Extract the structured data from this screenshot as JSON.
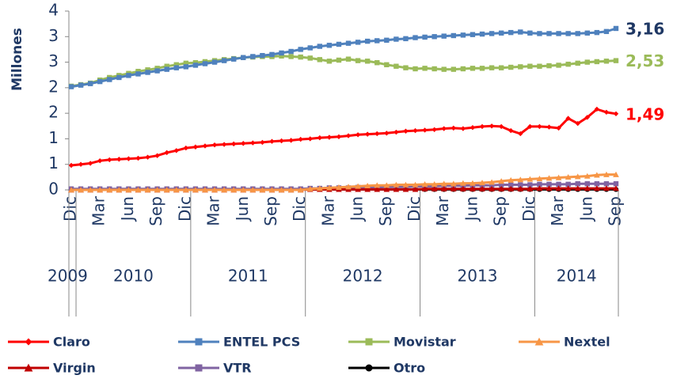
{
  "chart_data": {
    "type": "line",
    "y_label": "Millones",
    "categories": [
      "Dic",
      null,
      null,
      "Mar",
      null,
      null,
      "Jun",
      null,
      null,
      "Sep",
      null,
      null,
      "Dic",
      null,
      null,
      "Mar",
      null,
      null,
      "Jun",
      null,
      null,
      "Sep",
      null,
      null,
      "Dic",
      null,
      null,
      "Mar",
      null,
      null,
      "Jun",
      null,
      null,
      "Sep",
      null,
      null,
      "Dic",
      null,
      null,
      "Mar",
      null,
      null,
      "Jun",
      null,
      null,
      "Sep",
      null,
      null,
      "Dic",
      null,
      null,
      "Mar",
      null,
      null,
      "Jun",
      null,
      null,
      "Sep"
    ],
    "years": [
      "2009",
      "2010",
      "2011",
      "2012",
      "2013",
      "2014"
    ],
    "ylim": [
      0,
      3.5
    ],
    "yticks": [
      0,
      {
        "value": 0.5,
        "label": "1"
      },
      1,
      {
        "value": 1.5,
        "label": "2"
      },
      2,
      {
        "value": 2.5,
        "label": "3"
      },
      3,
      {
        "value": 3.5,
        "label": "4"
      }
    ],
    "series": [
      {
        "name": "Claro",
        "color": "#ff0000",
        "marker": "diamond",
        "values": [
          0.48,
          0.5,
          0.52,
          0.57,
          0.59,
          0.6,
          0.61,
          0.62,
          0.64,
          0.67,
          0.73,
          0.77,
          0.82,
          0.84,
          0.86,
          0.88,
          0.89,
          0.9,
          0.91,
          0.92,
          0.93,
          0.95,
          0.96,
          0.97,
          0.99,
          1.0,
          1.02,
          1.03,
          1.04,
          1.06,
          1.08,
          1.09,
          1.1,
          1.11,
          1.13,
          1.15,
          1.16,
          1.17,
          1.18,
          1.2,
          1.21,
          1.2,
          1.22,
          1.24,
          1.25,
          1.24,
          1.16,
          1.1,
          1.24,
          1.24,
          1.23,
          1.21,
          1.4,
          1.3,
          1.42,
          1.58,
          1.52,
          1.49
        ],
        "value_labels": [
          null,
          null,
          null,
          null,
          null,
          null,
          null,
          null,
          null,
          null,
          null,
          null,
          null,
          null,
          null,
          null,
          null,
          null,
          null,
          null,
          null,
          null,
          null,
          null,
          null,
          null,
          null,
          null,
          null,
          null,
          null,
          null,
          null,
          null,
          null,
          null,
          null,
          null,
          null,
          null,
          null,
          null,
          null,
          null,
          null,
          null,
          null,
          null,
          null,
          null,
          null,
          null,
          null,
          null,
          null,
          null,
          null,
          "1,49"
        ]
      },
      {
        "name": "ENTEL PCS",
        "color": "#4f81bd",
        "marker": "square",
        "values": [
          2.02,
          2.05,
          2.08,
          2.12,
          2.16,
          2.2,
          2.24,
          2.27,
          2.3,
          2.33,
          2.36,
          2.39,
          2.41,
          2.44,
          2.47,
          2.5,
          2.53,
          2.56,
          2.59,
          2.61,
          2.63,
          2.65,
          2.68,
          2.71,
          2.75,
          2.78,
          2.81,
          2.83,
          2.85,
          2.87,
          2.89,
          2.91,
          2.92,
          2.93,
          2.95,
          2.96,
          2.98,
          2.99,
          3.0,
          3.01,
          3.02,
          3.03,
          3.04,
          3.05,
          3.06,
          3.07,
          3.08,
          3.09,
          3.07,
          3.06,
          3.06,
          3.06,
          3.06,
          3.06,
          3.07,
          3.08,
          3.1,
          3.16
        ],
        "value_labels": [
          null,
          null,
          null,
          null,
          null,
          null,
          null,
          null,
          null,
          null,
          null,
          null,
          null,
          null,
          null,
          null,
          null,
          null,
          null,
          null,
          null,
          null,
          null,
          null,
          null,
          null,
          null,
          null,
          null,
          null,
          null,
          null,
          null,
          null,
          null,
          null,
          null,
          null,
          null,
          null,
          null,
          null,
          null,
          null,
          null,
          null,
          null,
          null,
          null,
          null,
          null,
          null,
          null,
          null,
          null,
          null,
          null,
          "3,16"
        ]
      },
      {
        "name": "Movistar",
        "color": "#9bbb59",
        "marker": "square",
        "values": [
          2.03,
          2.06,
          2.09,
          2.15,
          2.2,
          2.24,
          2.28,
          2.32,
          2.35,
          2.38,
          2.42,
          2.45,
          2.48,
          2.49,
          2.51,
          2.53,
          2.55,
          2.57,
          2.59,
          2.6,
          2.61,
          2.61,
          2.62,
          2.61,
          2.6,
          2.58,
          2.55,
          2.52,
          2.54,
          2.56,
          2.53,
          2.52,
          2.49,
          2.45,
          2.42,
          2.39,
          2.37,
          2.38,
          2.37,
          2.36,
          2.36,
          2.37,
          2.38,
          2.38,
          2.39,
          2.39,
          2.4,
          2.41,
          2.42,
          2.42,
          2.43,
          2.44,
          2.46,
          2.48,
          2.5,
          2.51,
          2.52,
          2.53
        ],
        "value_labels": [
          null,
          null,
          null,
          null,
          null,
          null,
          null,
          null,
          null,
          null,
          null,
          null,
          null,
          null,
          null,
          null,
          null,
          null,
          null,
          null,
          null,
          null,
          null,
          null,
          null,
          null,
          null,
          null,
          null,
          null,
          null,
          null,
          null,
          null,
          null,
          null,
          null,
          null,
          null,
          null,
          null,
          null,
          null,
          null,
          null,
          null,
          null,
          null,
          null,
          null,
          null,
          null,
          null,
          null,
          null,
          null,
          null,
          "2,53"
        ]
      },
      {
        "name": "Nextel",
        "color": "#f79646",
        "marker": "triangle",
        "values": [
          0,
          0,
          0,
          0,
          0,
          0,
          0,
          0,
          0,
          0,
          0,
          0,
          0,
          0,
          0,
          0,
          0,
          0,
          0,
          0,
          0,
          0,
          0,
          0,
          0,
          0.02,
          0.03,
          0.04,
          0.05,
          0.06,
          0.07,
          0.08,
          0.09,
          0.09,
          0.1,
          0.1,
          0.1,
          0.11,
          0.11,
          0.12,
          0.12,
          0.13,
          0.13,
          0.14,
          0.15,
          0.17,
          0.19,
          0.2,
          0.21,
          0.22,
          0.23,
          0.24,
          0.25,
          0.26,
          0.27,
          0.29,
          0.3,
          0.3
        ]
      },
      {
        "name": "Virgin",
        "color": "#c00000",
        "marker": "triangle",
        "values": [
          0,
          0,
          0,
          0,
          0,
          0,
          0,
          0,
          0,
          0,
          0,
          0,
          0,
          0,
          0,
          0,
          0,
          0,
          0,
          0,
          0,
          0,
          0,
          0,
          0,
          0.01,
          0.01,
          0.01,
          0.01,
          0.01,
          0.01,
          0.01,
          0.01,
          0.01,
          0.01,
          0.01,
          0.01,
          0.02,
          0.02,
          0.02,
          0.02,
          0.02,
          0.02,
          0.02,
          0.02,
          0.02,
          0.02,
          0.02,
          0.02,
          0.03,
          0.03,
          0.03,
          0.03,
          0.03,
          0.03,
          0.03,
          0.03,
          0.03
        ]
      },
      {
        "name": "VTR",
        "color": "#8064a2",
        "marker": "square",
        "values": [
          0.02,
          0.02,
          0.02,
          0.02,
          0.02,
          0.02,
          0.02,
          0.02,
          0.02,
          0.02,
          0.02,
          0.02,
          0.02,
          0.02,
          0.02,
          0.02,
          0.02,
          0.02,
          0.02,
          0.02,
          0.02,
          0.02,
          0.02,
          0.02,
          0.02,
          0.03,
          0.03,
          0.04,
          0.04,
          0.04,
          0.05,
          0.05,
          0.05,
          0.06,
          0.06,
          0.06,
          0.07,
          0.07,
          0.07,
          0.08,
          0.08,
          0.08,
          0.09,
          0.09,
          0.09,
          0.1,
          0.1,
          0.1,
          0.1,
          0.11,
          0.11,
          0.11,
          0.11,
          0.12,
          0.12,
          0.12,
          0.12,
          0.12
        ]
      },
      {
        "name": "Otro",
        "color": "#000000",
        "marker": "circle",
        "values": [
          0.01,
          0.01,
          0.01,
          0.01,
          0.01,
          0.01,
          0.01,
          0.01,
          0.01,
          0.01,
          0.01,
          0.01,
          0.01,
          0.01,
          0.01,
          0.01,
          0.01,
          0.01,
          0.01,
          0.01,
          0.01,
          0.01,
          0.01,
          0.01,
          0.01,
          0.01,
          0.01,
          0.01,
          0.01,
          0.01,
          0.01,
          0.01,
          0.01,
          0.01,
          0.01,
          0.01,
          0.01,
          0.01,
          0.01,
          0.01,
          0.01,
          0.01,
          0.01,
          0.01,
          0.01,
          0.01,
          0.01,
          0.01,
          0.01,
          0.01,
          0.01,
          0.01,
          0.01,
          0.01,
          0.01,
          0.01,
          0.01,
          0.01
        ]
      }
    ]
  }
}
